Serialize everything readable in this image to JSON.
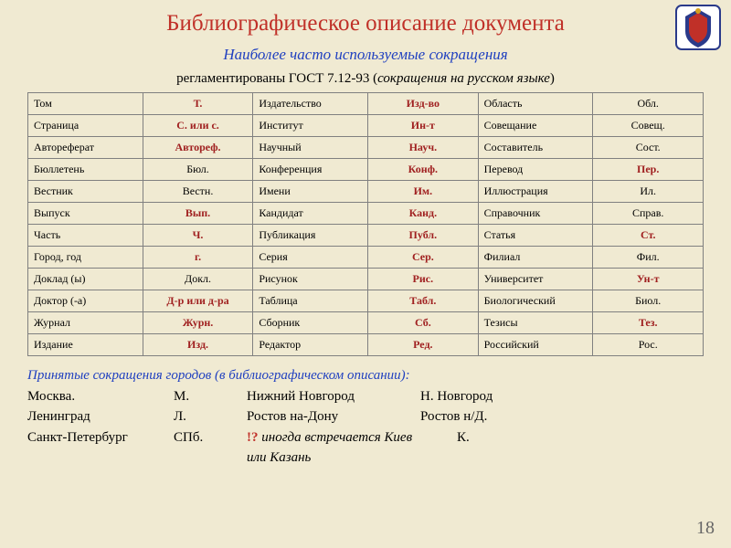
{
  "title": "Библиографическое описание документа",
  "subtitle": "Наиболее часто используемые сокращения",
  "regulation_prefix": "регламентированы ГОСТ 7.12-93 (",
  "regulation_italic": "сокращения на русском языке",
  "regulation_suffix": ")",
  "table_colors": {
    "border": "#808080",
    "abbr_red": "#a02020",
    "term_black": "#000000"
  },
  "rows": [
    {
      "t1": "Том",
      "a1": "Т.",
      "b1": false,
      "t2": "Издательство",
      "a2": "Изд-во",
      "b2": false,
      "t3": "Область",
      "a3": "Обл.",
      "b3": true
    },
    {
      "t1": "Страница",
      "a1": "С. или с.",
      "b1": false,
      "t2": "Институт",
      "a2": "Ин-т",
      "b2": false,
      "t3": "Совещание",
      "a3": "Совещ.",
      "b3": true
    },
    {
      "t1": "Автореферат",
      "a1": "Автореф.",
      "b1": false,
      "t2": "Научный",
      "a2": "Науч.",
      "b2": false,
      "t3": "Составитель",
      "a3": "Сост.",
      "b3": true
    },
    {
      "t1": "Бюллетень",
      "a1": "Бюл.",
      "b1": true,
      "t2": "Конференция",
      "a2": "Конф.",
      "b2": false,
      "t3": "Перевод",
      "a3": "Пер.",
      "b3": false
    },
    {
      "t1": "Вестник",
      "a1": "Вестн.",
      "b1": true,
      "t2": "Имени",
      "a2": "Им.",
      "b2": false,
      "t3": "Иллюстрация",
      "a3": "Ил.",
      "b3": true
    },
    {
      "t1": "Выпуск",
      "a1": "Вып.",
      "b1": false,
      "t2": "Кандидат",
      "a2": "Канд.",
      "b2": false,
      "t3": "Справочник",
      "a3": "Справ.",
      "b3": true
    },
    {
      "t1": "Часть",
      "a1": "Ч.",
      "b1": false,
      "t2": "Публикация",
      "a2": "Публ.",
      "b2": false,
      "t3": "Статья",
      "a3": "Ст.",
      "b3": false
    },
    {
      "t1": "Город, год",
      "a1": "г.",
      "b1": false,
      "t2": "Серия",
      "a2": "Сер.",
      "b2": false,
      "t3": "Филиал",
      "a3": "Фил.",
      "b3": true
    },
    {
      "t1": "Доклад (ы)",
      "a1": "Докл.",
      "b1": true,
      "t2": "Рисунок",
      "a2": "Рис.",
      "b2": false,
      "t3": "Университет",
      "a3": "Ун-т",
      "b3": false
    },
    {
      "t1": "Доктор (-а)",
      "a1": "Д-р или д-ра",
      "b1": false,
      "t2": "Таблица",
      "a2": "Табл.",
      "b2": false,
      "t3": "Биологический",
      "a3": "Биол.",
      "b3": true
    },
    {
      "t1": "Журнал",
      "a1": "Журн.",
      "b1": false,
      "t2": "Сборник",
      "a2": "Сб.",
      "b2": false,
      "t3": "Тезисы",
      "a3": "Тез.",
      "b3": false
    },
    {
      "t1": "Издание",
      "a1": "Изд.",
      "b1": false,
      "t2": "Редактор",
      "a2": "Ред.",
      "b2": false,
      "t3": "Российский",
      "a3": "Рос.",
      "b3": true
    }
  ],
  "footer_heading": "Принятые сокращения городов (в библиографическом описании):",
  "cities": [
    {
      "c1": "Москва.",
      "c2": "М.",
      "c3": "Нижний Новгород",
      "c4": "Н. Новгород"
    },
    {
      "c1": "Ленинград",
      "c2": "Л.",
      "c3": "Ростов на-Дону",
      "c4": "Ростов н/Д."
    }
  ],
  "last_line": {
    "c1": "Санкт-Петербург",
    "c2": "СПб.",
    "warn": "!?",
    "rest": " иногда встречается Киев или Казань",
    "tail": "К."
  },
  "page_number": "18"
}
